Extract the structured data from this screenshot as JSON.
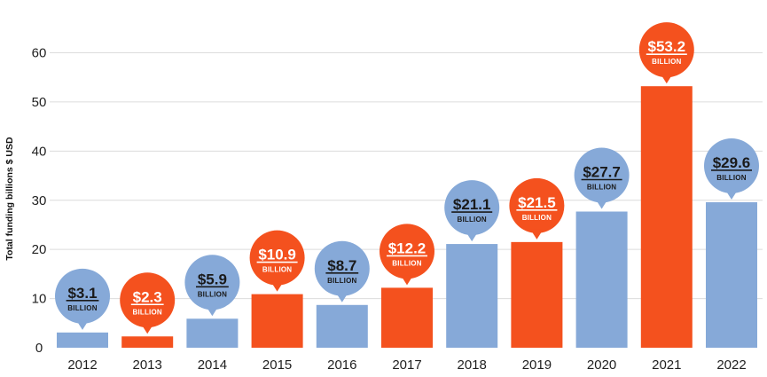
{
  "chart_data": {
    "type": "bar",
    "ylabel": "Total funding billions $ USD",
    "ylim": [
      0,
      65
    ],
    "yticks": [
      0,
      10,
      20,
      30,
      40,
      50,
      60
    ],
    "categories": [
      "2012",
      "2013",
      "2014",
      "2015",
      "2016",
      "2017",
      "2018",
      "2019",
      "2020",
      "2021",
      "2022"
    ],
    "values": [
      3.1,
      2.3,
      5.9,
      10.9,
      8.7,
      12.2,
      21.1,
      21.5,
      27.7,
      53.2,
      29.6
    ],
    "data_labels": [
      "$3.1",
      "$2.3",
      "$5.9",
      "$10.9",
      "$8.7",
      "$12.2",
      "$21.1",
      "$21.5",
      "$27.7",
      "$53.2",
      "$29.6"
    ],
    "data_label_unit": "BILLION",
    "bar_colors": [
      "#86a9d8",
      "#f4511e",
      "#86a9d8",
      "#f4511e",
      "#86a9d8",
      "#f4511e",
      "#86a9d8",
      "#f4511e",
      "#86a9d8",
      "#f4511e",
      "#86a9d8"
    ],
    "grid": true,
    "legend": "none",
    "colors": {
      "blue": "#86a9d8",
      "orange": "#f4511e",
      "blue_label_text": "#1a1a1a",
      "orange_label_text": "#ffffff",
      "gridline": "#dcdcdc"
    }
  }
}
